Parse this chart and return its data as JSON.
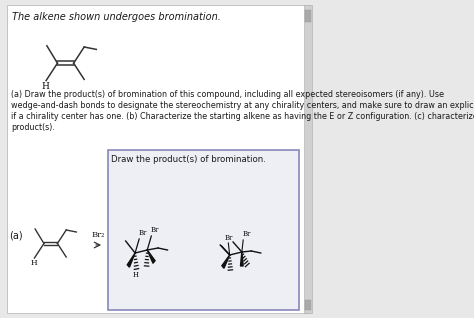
{
  "title_text": "The alkene shown undergoes bromination.",
  "body_text_lines": [
    "(a) Draw the product(s) of bromination of this compound, including all expected stereoisomers (if any). Use",
    "wedge-and-dash bonds to designate the stereochemistry at any chirality centers, and make sure to draw an explicit hydrogen",
    "if a chirality center has one. (b) Characterize the starting alkene as having the E or Z configuration. (c) characterize the",
    "product(s)."
  ],
  "box_label": "Draw the product(s) of bromination.",
  "part_a_label": "(a)",
  "reagent": "Br₂",
  "bg_outer": "#e8e8e8",
  "bg_white": "#ffffff",
  "bg_box": "#eeeef5",
  "box_border": "#8888bb",
  "scrollbar_bg": "#d0d0d0",
  "scrollbar_thumb": "#aaaaaa",
  "text_color": "#1a1a1a",
  "dark": "#111111",
  "line_color": "#333333"
}
